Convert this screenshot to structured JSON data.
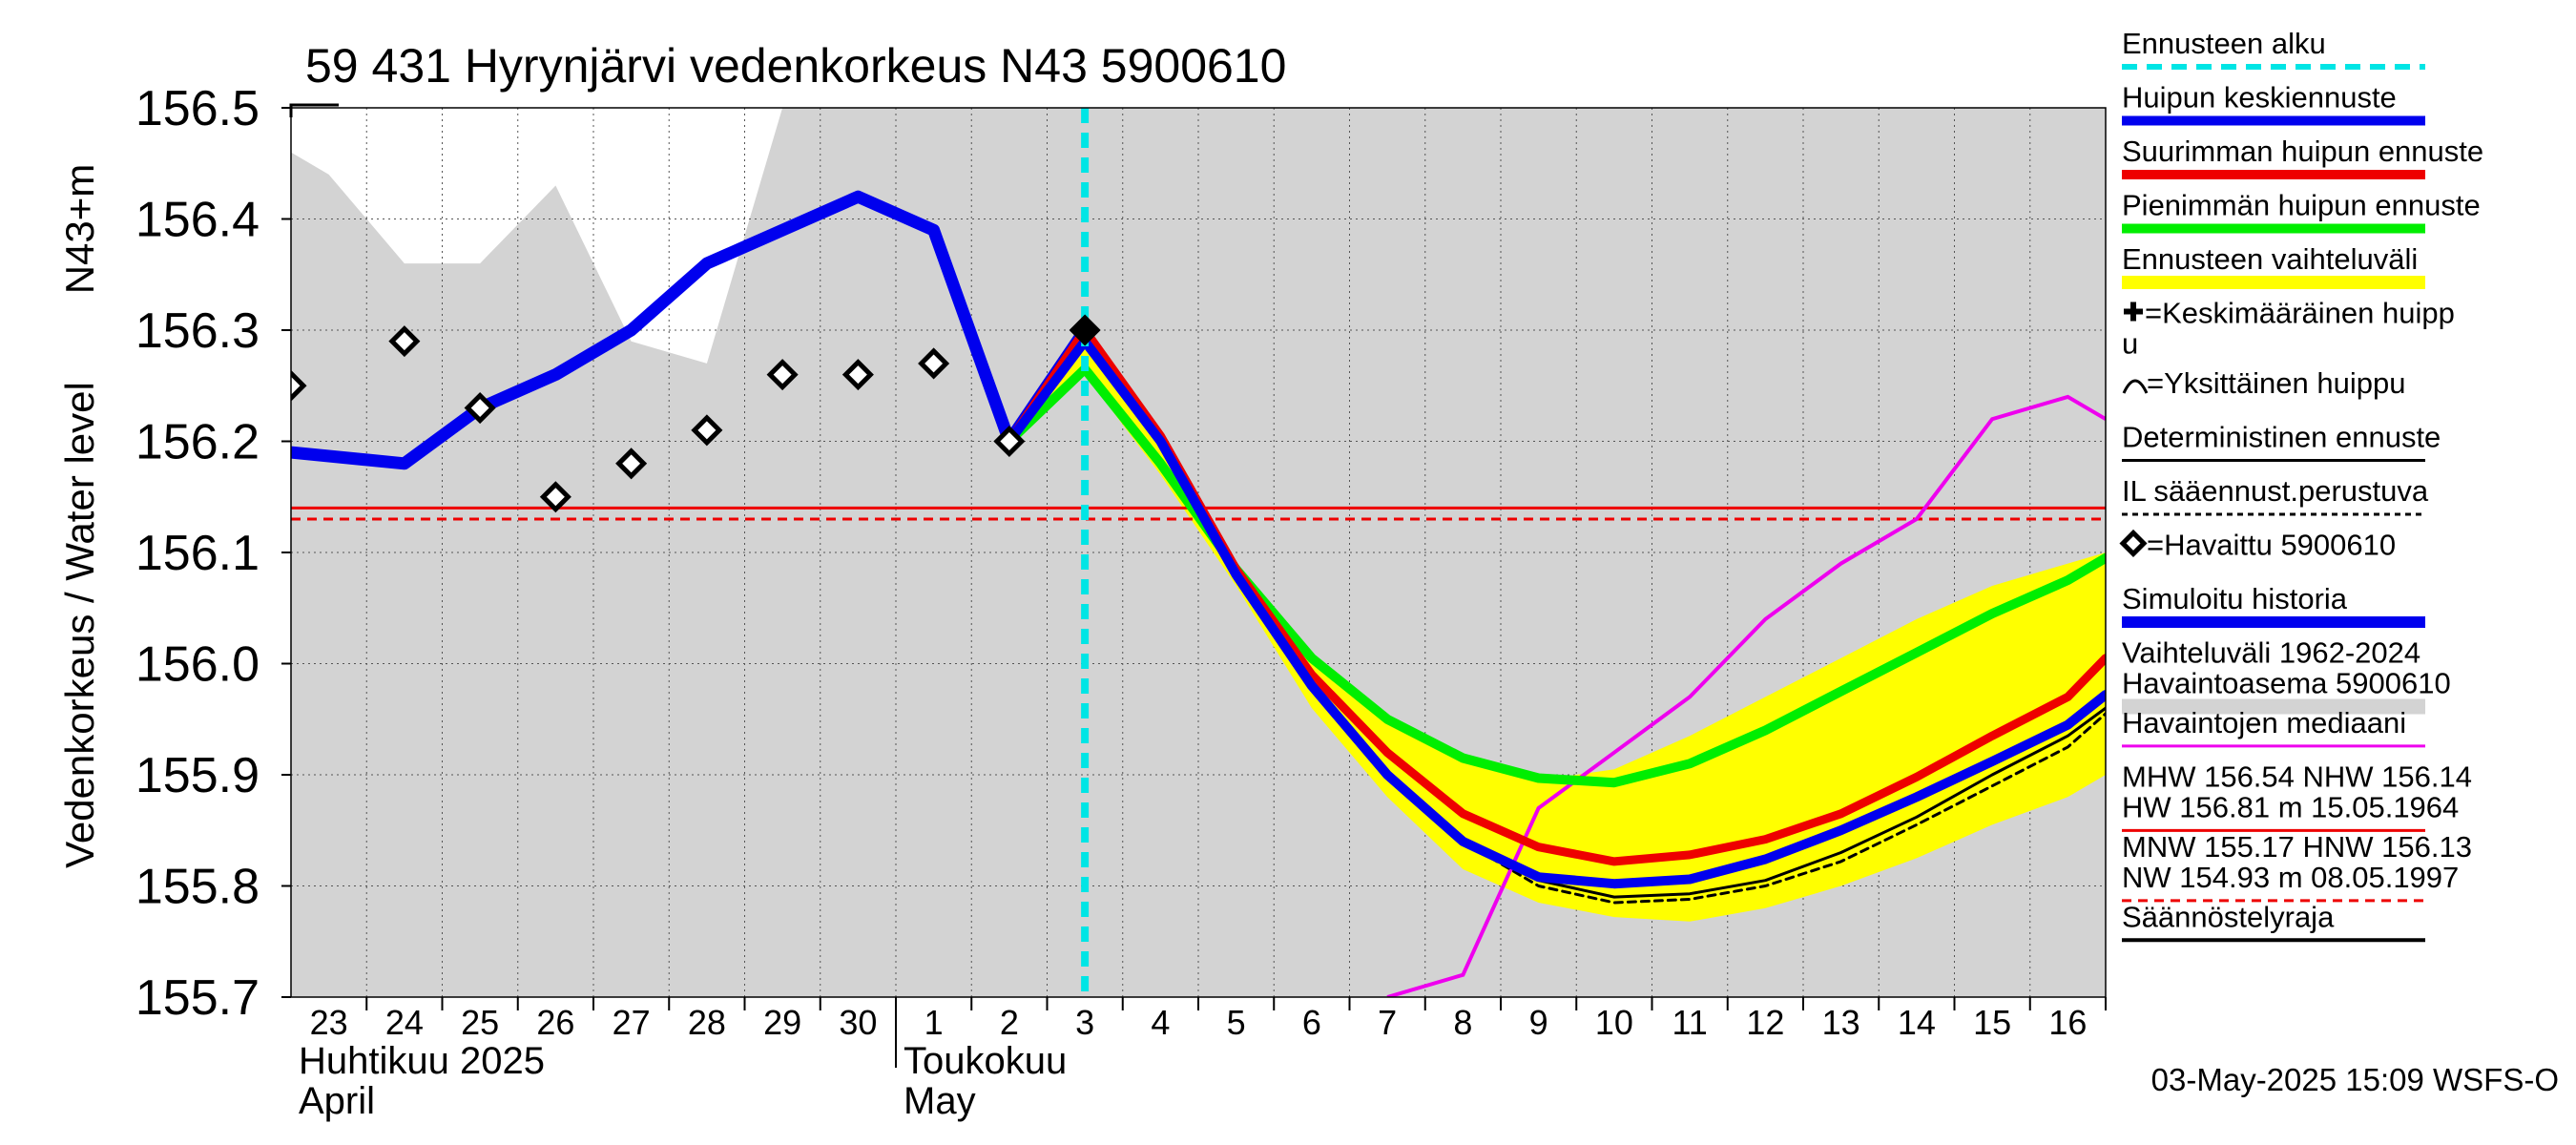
{
  "chart_data": {
    "type": "line",
    "title": "59 431 Hyrynjärvi vedenkorkeus N43 5900610",
    "ylabel": "Vedenkorkeus / Water level",
    "ylabel_unit": "N43+m",
    "ylim": [
      155.7,
      156.5
    ],
    "y_ticks": [
      "155.7",
      "155.8",
      "155.9",
      "156.0",
      "156.1",
      "156.2",
      "156.3",
      "156.4",
      "156.5"
    ],
    "x_range": [
      -0.5,
      23.5
    ],
    "day_labels": [
      "23",
      "24",
      "25",
      "26",
      "27",
      "28",
      "29",
      "30",
      "1",
      "2",
      "3",
      "4",
      "5",
      "6",
      "7",
      "8",
      "9",
      "10",
      "11",
      "12",
      "13",
      "14",
      "15",
      "16"
    ],
    "month_labels": [
      {
        "fi": "Huhtikuu  2025",
        "en": "April",
        "start_index": 0
      },
      {
        "fi": "Toukokuu",
        "en": "May",
        "start_index": 8
      }
    ],
    "forecast_start_x": 10,
    "historical_range": {
      "x": [
        -0.5,
        0,
        1,
        2,
        3,
        4,
        5,
        6,
        7,
        7.6,
        8,
        9,
        10,
        11,
        12,
        13,
        14,
        15,
        16,
        17,
        18,
        19,
        20,
        21,
        22,
        23,
        23.5
      ],
      "upper": [
        156.46,
        156.44,
        156.36,
        156.36,
        156.43,
        156.29,
        156.27,
        156.5,
        156.5,
        156.5,
        156.5,
        156.5,
        156.5,
        156.5,
        156.5,
        156.5,
        156.5,
        156.5,
        156.5,
        156.5,
        156.5,
        156.5,
        156.5,
        156.5,
        156.5,
        156.5,
        156.5
      ],
      "lower": [
        155.7,
        155.7,
        155.7,
        155.7,
        155.7,
        155.7,
        155.7,
        155.7,
        155.7,
        155.7,
        155.7,
        155.7,
        155.7,
        155.7,
        155.7,
        155.7,
        155.7,
        155.7,
        155.7,
        155.7,
        155.7,
        155.7,
        155.7,
        155.7,
        155.7,
        155.7,
        155.7
      ]
    },
    "forecast_band": {
      "x": [
        9,
        10,
        11,
        12,
        13,
        14,
        15,
        16,
        17,
        18,
        19,
        20,
        21,
        22,
        23,
        23.5
      ],
      "upper": [
        156.2,
        156.295,
        156.21,
        156.09,
        156.01,
        155.95,
        155.915,
        155.895,
        155.905,
        155.935,
        155.97,
        156.005,
        156.04,
        156.07,
        156.09,
        156.1
      ],
      "lower": [
        156.2,
        156.26,
        156.17,
        156.07,
        155.96,
        155.88,
        155.815,
        155.785,
        155.772,
        155.768,
        155.78,
        155.8,
        155.825,
        155.855,
        155.88,
        155.9
      ]
    },
    "median": {
      "x": [
        14,
        15,
        16,
        17,
        18,
        19,
        20,
        21,
        22,
        23,
        23.5
      ],
      "y": [
        155.7,
        155.72,
        155.87,
        155.92,
        155.97,
        156.04,
        156.09,
        156.13,
        156.22,
        156.24,
        156.22
      ]
    },
    "series": [
      {
        "name": "Simuloitu historia",
        "color": "#0000ee",
        "x": [
          -0.5,
          1,
          2,
          3,
          4,
          5,
          6,
          7,
          8,
          9,
          10
        ],
        "y": [
          156.19,
          156.18,
          156.23,
          156.26,
          156.3,
          156.36,
          156.39,
          156.42,
          156.39,
          156.2,
          156.3
        ]
      },
      {
        "name": "Pienimmän huipun ennuste",
        "color": "#00ee00",
        "x": [
          9,
          10,
          11,
          12,
          13,
          14,
          15,
          16,
          17,
          18,
          19,
          20,
          21,
          22,
          23,
          23.5
        ],
        "y": [
          156.2,
          156.265,
          156.18,
          156.085,
          156.005,
          155.95,
          155.915,
          155.897,
          155.893,
          155.91,
          155.94,
          155.975,
          156.01,
          156.045,
          156.075,
          156.095
        ]
      },
      {
        "name": "Suurimman huipun ennuste",
        "color": "#ee0000",
        "x": [
          9,
          10,
          11,
          12,
          13,
          14,
          15,
          16,
          17,
          18,
          19,
          20,
          21,
          22,
          23,
          23.5
        ],
        "y": [
          156.2,
          156.3,
          156.205,
          156.085,
          155.99,
          155.92,
          155.865,
          155.835,
          155.822,
          155.828,
          155.842,
          155.865,
          155.898,
          155.935,
          155.97,
          156.005
        ]
      },
      {
        "name": "Deterministinen ennuste",
        "color": "#000000",
        "x": [
          9,
          10,
          11,
          12,
          13,
          14,
          15,
          16,
          17,
          18,
          19,
          20,
          21,
          22,
          23,
          23.5
        ],
        "y": [
          156.2,
          156.29,
          156.2,
          156.08,
          155.98,
          155.9,
          155.84,
          155.805,
          155.79,
          155.793,
          155.805,
          155.83,
          155.862,
          155.9,
          155.935,
          155.96
        ]
      },
      {
        "name": "IL sääennust.perustuva",
        "color": "#000000",
        "dashed": true,
        "x": [
          9,
          10,
          11,
          12,
          13,
          14,
          15,
          16,
          17,
          18,
          19,
          20,
          21,
          22,
          23,
          23.5
        ],
        "y": [
          156.2,
          156.29,
          156.2,
          156.08,
          155.98,
          155.9,
          155.84,
          155.8,
          155.785,
          155.788,
          155.8,
          155.822,
          155.855,
          155.89,
          155.925,
          155.955
        ]
      },
      {
        "name": "Huipun keskiennuste",
        "color": "#0000ee",
        "x": [
          9,
          10,
          11,
          12,
          13,
          14,
          15,
          16,
          17,
          18,
          19,
          20,
          21,
          22,
          23,
          23.5
        ],
        "y": [
          156.2,
          156.29,
          156.2,
          156.08,
          155.98,
          155.9,
          155.84,
          155.808,
          155.802,
          155.806,
          155.824,
          155.85,
          155.88,
          155.912,
          155.945,
          155.972
        ]
      }
    ],
    "observed": {
      "name": "Havaittu 5900610",
      "x": [
        -0.5,
        1,
        2,
        3,
        4,
        5,
        6,
        7,
        8,
        9,
        10
      ],
      "y": [
        156.25,
        156.29,
        156.23,
        156.15,
        156.18,
        156.21,
        156.26,
        156.26,
        156.27,
        156.2,
        156.3
      ]
    },
    "hlines": [
      {
        "name": "NHW",
        "y": 156.14,
        "color": "#ee0000",
        "dashed": false
      },
      {
        "name": "HNW",
        "y": 156.13,
        "color": "#ee0000",
        "dashed": true
      }
    ],
    "legend": [
      {
        "label": "Ennusteen alku",
        "color": "#00e5e5",
        "style": "dash",
        "width": 6
      },
      {
        "label": "Huipun keskiennuste",
        "color": "#0000ee",
        "style": "solid",
        "width": 10
      },
      {
        "label": "Suurimman huipun ennuste",
        "color": "#ee0000",
        "style": "solid",
        "width": 10
      },
      {
        "label": "Pienimmän huipun ennuste",
        "color": "#00ee00",
        "style": "solid",
        "width": 10
      },
      {
        "label": "Ennusteen vaihteluväli",
        "color": "#ffff00",
        "style": "solid",
        "width": 14
      },
      {
        "label": "=Keskimääräinen huipp",
        "label2": "u",
        "marker": "plus"
      },
      {
        "label": "=Yksittäinen huippu",
        "marker": "arc"
      },
      {
        "label": "Deterministinen ennuste",
        "color": "#000000",
        "style": "solid",
        "width": 3
      },
      {
        "label": "IL sääennust.perustuva",
        "color": "#000000",
        "style": "dot",
        "width": 3
      },
      {
        "label": "=Havaittu 5900610",
        "marker": "diamond"
      },
      {
        "label": "Simuloitu historia",
        "color": "#0000ee",
        "style": "solid",
        "width": 12
      },
      {
        "label": "Vaihteluväli 1962-2024",
        "label2": " Havaintoasema 5900610",
        "color": "#d3d3d3",
        "style": "solid",
        "width": 16
      },
      {
        "label": "Havaintojen mediaani",
        "color": "#ee00ee",
        "style": "solid",
        "width": 3
      },
      {
        "label": "MHW 156.54 NHW 156.14",
        "label2": "HW 156.81 m 15.05.1964",
        "color": "#ee0000",
        "style": "solid",
        "width": 3
      },
      {
        "label": "MNW 155.17 HNW 156.13",
        "label2": "NW 154.93 m 08.05.1997",
        "color": "#ee0000",
        "style": "dash",
        "width": 3
      },
      {
        "label": "Säännöstelyraja",
        "color": "#000000",
        "style": "solid",
        "width": 4
      }
    ],
    "timestamp": "03-May-2025 15:09 WSFS-O"
  }
}
